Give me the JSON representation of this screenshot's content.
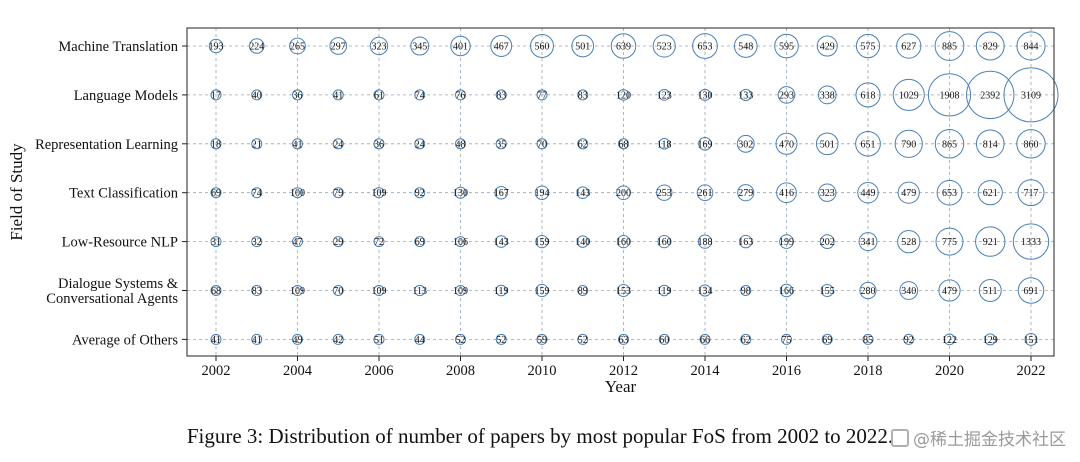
{
  "chart_data": {
    "type": "bubble",
    "xlabel": "Year",
    "ylabel": "Field of Study",
    "x_ticks": [
      2002,
      2004,
      2006,
      2008,
      2010,
      2012,
      2014,
      2016,
      2018,
      2020,
      2022
    ],
    "years": [
      2002,
      2003,
      2004,
      2005,
      2006,
      2007,
      2008,
      2009,
      2010,
      2011,
      2012,
      2013,
      2014,
      2015,
      2016,
      2017,
      2018,
      2019,
      2020,
      2021,
      2022
    ],
    "xlim": [
      2001.2,
      2022.8
    ],
    "grid": true,
    "bubble_color": "#4a80b8",
    "series": [
      {
        "name": "Machine Translation",
        "values": [
          193,
          224,
          265,
          297,
          323,
          345,
          401,
          467,
          560,
          501,
          639,
          523,
          653,
          548,
          595,
          429,
          575,
          627,
          885,
          829,
          844
        ]
      },
      {
        "name": "Language Models",
        "values": [
          17,
          40,
          36,
          41,
          61,
          74,
          76,
          83,
          77,
          83,
          120,
          123,
          130,
          133,
          293,
          338,
          618,
          1029,
          1908,
          2392,
          3109
        ]
      },
      {
        "name": "Representation Learning",
        "values": [
          18,
          21,
          41,
          24,
          36,
          24,
          48,
          35,
          70,
          62,
          68,
          118,
          169,
          302,
          470,
          501,
          651,
          790,
          865,
          814,
          860
        ]
      },
      {
        "name": "Text Classification",
        "values": [
          69,
          74,
          100,
          79,
          109,
          92,
          130,
          167,
          194,
          143,
          200,
          253,
          261,
          279,
          416,
          323,
          449,
          479,
          653,
          621,
          717
        ]
      },
      {
        "name": "Low-Resource NLP",
        "values": [
          31,
          32,
          47,
          29,
          72,
          69,
          106,
          143,
          159,
          140,
          160,
          160,
          188,
          163,
          199,
          202,
          341,
          528,
          775,
          921,
          1333
        ]
      },
      {
        "name": "Dialogue Systems &\nConversational Agents",
        "values": [
          68,
          83,
          109,
          70,
          109,
          113,
          109,
          119,
          159,
          89,
          153,
          119,
          134,
          98,
          166,
          155,
          280,
          340,
          479,
          511,
          691
        ]
      },
      {
        "name": "Average of Others",
        "values": [
          41,
          41,
          49,
          42,
          51,
          44,
          52,
          52,
          59,
          52,
          63,
          60,
          66,
          62,
          75,
          69,
          85,
          92,
          122,
          129,
          151
        ]
      }
    ]
  },
  "caption": "Figure 3: Distribution of number of papers by most popular FoS from 2002 to 2022.",
  "watermark": "@稀土掘金技术社区"
}
